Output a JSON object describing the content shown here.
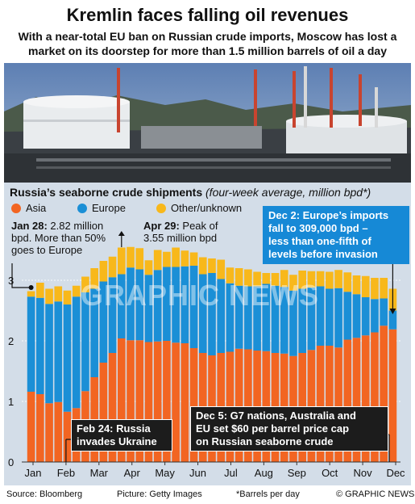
{
  "header": {
    "title": "Kremlin faces falling oil revenues",
    "subtitle": "With a near-total EU ban on Russian crude imports, Moscow has lost a market on its doorstep for more than 1.5 million barrels of oil a day"
  },
  "photo": {
    "description_icon": "oil-terminal-photo"
  },
  "chart_data": {
    "type": "bar",
    "stacked": true,
    "title": "Russia’s seaborne crude shipments",
    "unit_note": "(four-week average, million bpd*)",
    "ylim": [
      0,
      3.6
    ],
    "yticks": [
      0,
      1,
      2,
      3
    ],
    "xlabels": [
      "Jan",
      "Feb",
      "Mar",
      "Apr",
      "May",
      "Jun",
      "Jul",
      "Aug",
      "Sep",
      "Oct",
      "Nov",
      "Dec"
    ],
    "legend_position": "top-left",
    "grid": true,
    "series": [
      {
        "name": "Asia",
        "color": "#f26522",
        "values": [
          1.16,
          1.12,
          0.97,
          0.99,
          0.83,
          0.89,
          1.17,
          1.4,
          1.64,
          1.8,
          2.04,
          2.01,
          2.01,
          1.98,
          1.99,
          2.0,
          1.97,
          1.96,
          1.88,
          1.8,
          1.76,
          1.8,
          1.82,
          1.87,
          1.86,
          1.84,
          1.83,
          1.8,
          1.79,
          1.75,
          1.8,
          1.85,
          1.92,
          1.92,
          1.89,
          2.02,
          2.05,
          2.09,
          2.14,
          2.25,
          2.19
        ]
      },
      {
        "name": "Europe",
        "color": "#1b8fd6",
        "values": [
          1.57,
          1.59,
          1.64,
          1.66,
          1.77,
          1.84,
          1.63,
          1.46,
          1.34,
          1.25,
          1.06,
          1.2,
          1.17,
          1.11,
          1.18,
          1.22,
          1.25,
          1.27,
          1.36,
          1.3,
          1.36,
          1.22,
          1.13,
          1.04,
          1.04,
          1.06,
          1.11,
          1.11,
          1.1,
          1.08,
          1.06,
          1.03,
          0.98,
          0.94,
          0.98,
          0.79,
          0.72,
          0.63,
          0.55,
          0.45,
          0.31
        ]
      },
      {
        "name": "Other/unknown",
        "color": "#f8b81b",
        "values": [
          0.09,
          0.25,
          0.25,
          0.25,
          0.23,
          0.18,
          0.26,
          0.34,
          0.34,
          0.34,
          0.44,
          0.34,
          0.35,
          0.24,
          0.33,
          0.25,
          0.32,
          0.26,
          0.22,
          0.28,
          0.24,
          0.32,
          0.26,
          0.29,
          0.28,
          0.24,
          0.18,
          0.21,
          0.28,
          0.26,
          0.3,
          0.27,
          0.25,
          0.28,
          0.3,
          0.32,
          0.31,
          0.35,
          0.35,
          0.34,
          0.36
        ]
      }
    ]
  },
  "annotations": {
    "jan28_head": "Jan 28:",
    "jan28_text1": " 2.82 million",
    "jan28_text2": "bpd. More than 50%",
    "jan28_text3": "goes to Europe",
    "apr29_head": "Apr 29:",
    "apr29_text1": " Peak of",
    "apr29_text2": "3.55 million bpd",
    "dec2_line1": "Dec 2: Europe’s imports",
    "dec2_line2": "fall to 309,000 bpd –",
    "dec2_line3": "less than one-fifth of",
    "dec2_line4": "levels before invasion",
    "feb24_line1": "Feb 24: Russia",
    "feb24_line2": "invades Ukraine",
    "dec5_line1": "Dec 5: G7 nations, Australia and",
    "dec5_line2": "EU set $60 per barrel price cap",
    "dec5_line3": "on Russian seaborne crude"
  },
  "watermark": "GRAPHIC NEWS",
  "footer": {
    "source": "Source: Bloomberg",
    "picture": "Picture: Getty Images",
    "note": "*Barrels per day",
    "credit": "© GRAPHIC NEWS"
  }
}
